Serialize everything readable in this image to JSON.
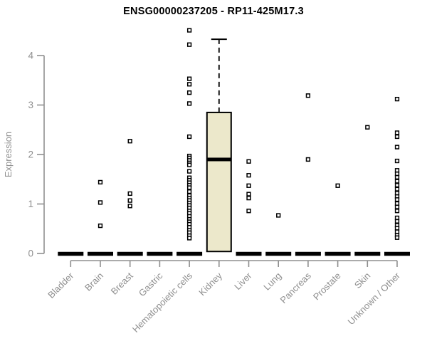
{
  "title": "ENSG00000237205 - RP11-425M17.3",
  "chart_data": {
    "type": "boxplot",
    "title": "ENSG00000237205 - RP11-425M17.3",
    "xlabel": "",
    "ylabel": "Expression",
    "ylim": [
      0,
      4.6
    ],
    "yticks": [
      0,
      1,
      2,
      3,
      4
    ],
    "grid": false,
    "legend": null,
    "categories": [
      "Bladder",
      "Brain",
      "Breast",
      "Gastric",
      "Hematopoietic cells",
      "Kidney",
      "Liver",
      "Lung",
      "Pancreas",
      "Prostate",
      "Skin",
      "Unknown / Other"
    ],
    "boxes": [
      {
        "category": "Bladder",
        "q1": 0,
        "median": 0,
        "q3": 0,
        "whisker_low": 0,
        "whisker_high": 0,
        "outliers": []
      },
      {
        "category": "Brain",
        "q1": 0,
        "median": 0,
        "q3": 0,
        "whisker_low": 0,
        "whisker_high": 0,
        "outliers": [
          1.44,
          1.03,
          0.56
        ]
      },
      {
        "category": "Breast",
        "q1": 0,
        "median": 0,
        "q3": 0,
        "whisker_low": 0,
        "whisker_high": 0,
        "outliers": [
          2.27,
          1.21,
          1.07,
          0.96
        ]
      },
      {
        "category": "Gastric",
        "q1": 0,
        "median": 0,
        "q3": 0,
        "whisker_low": 0,
        "whisker_high": 0,
        "outliers": []
      },
      {
        "category": "Hematopoietic cells",
        "q1": 0,
        "median": 0,
        "q3": 0,
        "whisker_low": 0,
        "whisker_high": 0,
        "outliers": [
          4.51,
          4.22,
          3.53,
          3.42,
          3.25,
          3.03,
          2.36,
          1.97,
          1.93,
          1.88,
          1.83,
          1.79,
          1.66,
          1.53,
          1.48,
          1.43,
          1.38,
          1.33,
          1.25,
          1.17,
          1.12,
          1.07,
          1.02,
          0.97,
          0.92,
          0.86,
          0.81,
          0.75,
          0.69,
          0.64,
          0.59,
          0.53,
          0.47,
          0.42,
          0.36,
          0.31
        ]
      },
      {
        "category": "Kidney",
        "q1": 0.04,
        "median": 1.9,
        "q3": 2.85,
        "whisker_low": 0.04,
        "whisker_high": 4.33,
        "outliers": []
      },
      {
        "category": "Liver",
        "q1": 0,
        "median": 0,
        "q3": 0,
        "whisker_low": 0,
        "whisker_high": 0,
        "outliers": [
          1.86,
          1.58,
          1.37,
          1.2,
          1.12,
          0.86
        ]
      },
      {
        "category": "Lung",
        "q1": 0,
        "median": 0,
        "q3": 0,
        "whisker_low": 0,
        "whisker_high": 0,
        "outliers": [
          0.77
        ]
      },
      {
        "category": "Pancreas",
        "q1": 0,
        "median": 0,
        "q3": 0,
        "whisker_low": 0,
        "whisker_high": 0,
        "outliers": [
          3.19,
          1.9
        ]
      },
      {
        "category": "Prostate",
        "q1": 0,
        "median": 0,
        "q3": 0,
        "whisker_low": 0,
        "whisker_high": 0,
        "outliers": [
          1.37
        ]
      },
      {
        "category": "Skin",
        "q1": 0,
        "median": 0,
        "q3": 0,
        "whisker_low": 0,
        "whisker_high": 0,
        "outliers": [
          2.55
        ]
      },
      {
        "category": "Unknown / Other",
        "q1": 0,
        "median": 0,
        "q3": 0,
        "whisker_low": 0,
        "whisker_high": 0,
        "outliers": [
          3.12,
          2.44,
          2.36,
          2.15,
          1.87,
          1.68,
          1.61,
          1.54,
          1.46,
          1.38,
          1.3,
          1.22,
          1.15,
          1.09,
          1.01,
          0.94,
          0.86,
          0.72,
          0.65,
          0.57,
          0.51,
          0.44,
          0.37,
          0.32
        ]
      }
    ],
    "colors": {
      "box_fill": "#ece8cb",
      "box_stroke": "#000000",
      "median": "#000000",
      "outlier_stroke": "#000000",
      "outlier_fill": "#ffffff",
      "axis": "#8f8f8f",
      "tick_label": "#8f8f8f",
      "title": "#000000",
      "background": "#ffffff"
    }
  }
}
